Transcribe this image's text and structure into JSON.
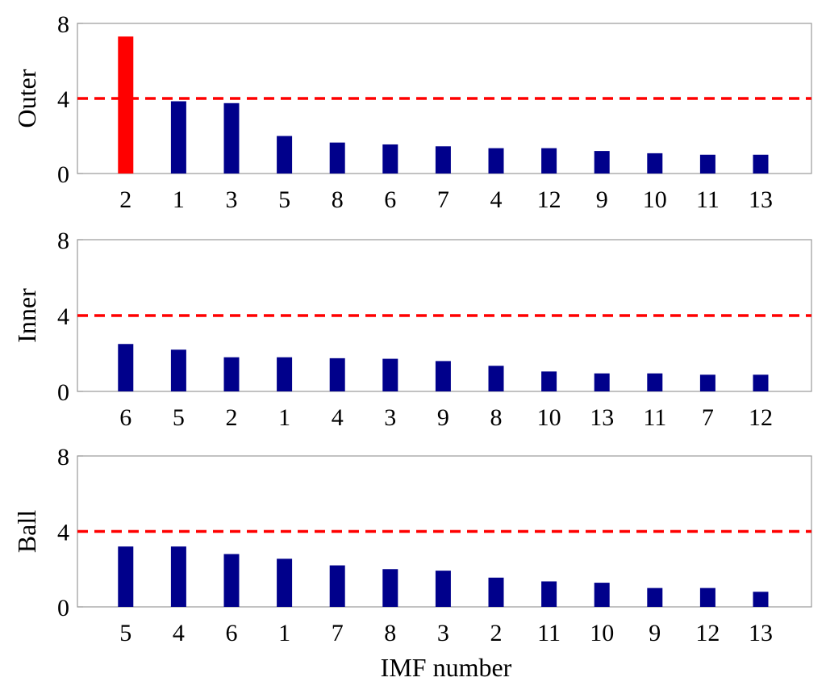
{
  "colors": {
    "bar_default": "#00008B",
    "bar_highlight": "#FF0000",
    "threshold_line": "#FF0000",
    "axis": "#999999"
  },
  "chart_data": [
    {
      "type": "bar",
      "ylabel": "Outer",
      "xlabel": "",
      "ylim": [
        0,
        8
      ],
      "yticks": [
        0,
        4,
        8
      ],
      "threshold": 4,
      "categories": [
        "2",
        "1",
        "3",
        "5",
        "8",
        "6",
        "7",
        "4",
        "12",
        "9",
        "10",
        "11",
        "13"
      ],
      "values": [
        7.3,
        3.85,
        3.75,
        2.0,
        1.65,
        1.55,
        1.45,
        1.35,
        1.35,
        1.2,
        1.08,
        1.0,
        1.0
      ],
      "highlight_index": 0,
      "grid": false
    },
    {
      "type": "bar",
      "ylabel": "Inner",
      "xlabel": "",
      "ylim": [
        0,
        8
      ],
      "yticks": [
        0,
        4,
        8
      ],
      "threshold": 4,
      "categories": [
        "6",
        "5",
        "2",
        "1",
        "4",
        "3",
        "9",
        "8",
        "10",
        "13",
        "11",
        "7",
        "12"
      ],
      "values": [
        2.5,
        2.2,
        1.8,
        1.8,
        1.75,
        1.72,
        1.6,
        1.35,
        1.05,
        0.95,
        0.95,
        0.88,
        0.88
      ],
      "highlight_index": null,
      "grid": false
    },
    {
      "type": "bar",
      "ylabel": "Ball",
      "xlabel": "IMF number",
      "ylim": [
        0,
        8
      ],
      "yticks": [
        0,
        4,
        8
      ],
      "threshold": 4,
      "categories": [
        "5",
        "4",
        "6",
        "1",
        "7",
        "8",
        "3",
        "2",
        "11",
        "10",
        "9",
        "12",
        "13"
      ],
      "values": [
        3.2,
        3.2,
        2.8,
        2.55,
        2.2,
        2.0,
        1.92,
        1.55,
        1.35,
        1.28,
        1.0,
        1.0,
        0.8
      ],
      "highlight_index": null,
      "grid": false
    }
  ]
}
